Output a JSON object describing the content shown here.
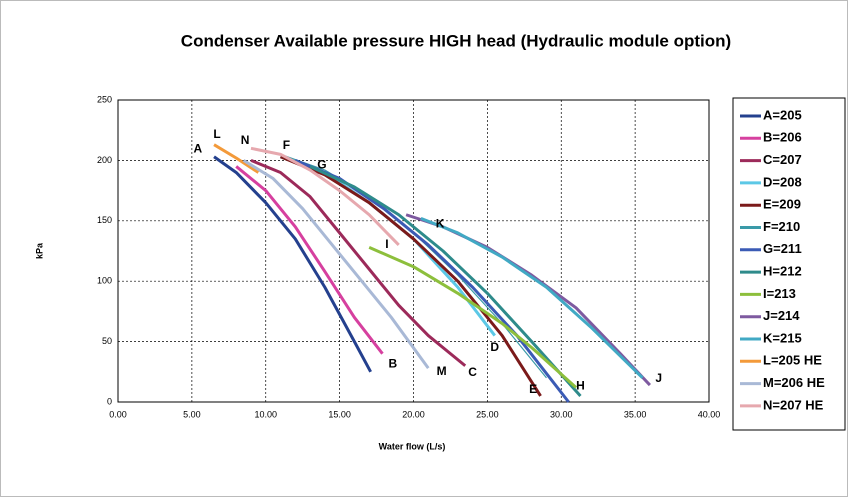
{
  "chart_data": {
    "type": "line",
    "title": "Condenser Available pressure HIGH head (Hydraulic module option)",
    "xlabel": "Water flow (L/s)",
    "ylabel": "kPa",
    "xlim": [
      0,
      40
    ],
    "ylim": [
      0,
      250
    ],
    "xticks": [
      {
        "value": 0,
        "label": "0.00"
      },
      {
        "value": 5,
        "label": "5.00"
      },
      {
        "value": 10,
        "label": "10.00"
      },
      {
        "value": 15,
        "label": "15.00"
      },
      {
        "value": 20,
        "label": "20.00"
      },
      {
        "value": 25,
        "label": "25.00"
      },
      {
        "value": 30,
        "label": "30.00"
      },
      {
        "value": 35,
        "label": "35.00"
      },
      {
        "value": 40,
        "label": "40.00"
      }
    ],
    "yticks": [
      0,
      50,
      100,
      150,
      200,
      250
    ],
    "grid": true,
    "series": [
      {
        "name": "A=205",
        "color": "#24408e",
        "x": [
          6.5,
          8,
          10,
          12,
          14,
          16,
          17.1
        ],
        "values": [
          203,
          190,
          165,
          135,
          95,
          50,
          25
        ]
      },
      {
        "name": "B=206",
        "color": "#d6409f",
        "x": [
          8,
          10,
          12,
          14,
          16,
          17.9
        ],
        "values": [
          195,
          175,
          145,
          108,
          70,
          40
        ]
      },
      {
        "name": "C=207",
        "color": "#9c2a5a",
        "x": [
          9,
          11,
          13,
          15,
          17,
          19,
          21,
          23.5
        ],
        "values": [
          200,
          190,
          170,
          140,
          110,
          80,
          55,
          30
        ]
      },
      {
        "name": "D=208",
        "color": "#5cc8e6",
        "x": [
          11,
          14,
          17,
          20,
          23,
          25.5
        ],
        "values": [
          203,
          190,
          165,
          135,
          95,
          55
        ]
      },
      {
        "name": "E=209",
        "color": "#7b1a1a",
        "x": [
          11,
          14,
          17,
          20,
          23,
          26,
          28.6
        ],
        "values": [
          203,
          188,
          165,
          135,
          100,
          55,
          5
        ]
      },
      {
        "name": "F=210",
        "color": "#3a9aa8",
        "x": [
          11,
          14,
          17,
          20,
          23,
          26,
          29
        ],
        "values": [
          205,
          192,
          170,
          140,
          105,
          65,
          20
        ]
      },
      {
        "name": "G=211",
        "color": "#3b5bb5",
        "x": [
          12,
          15,
          18,
          21,
          24,
          27,
          30.5
        ],
        "values": [
          200,
          185,
          160,
          130,
          95,
          55,
          0
        ]
      },
      {
        "name": "H=212",
        "color": "#2e8b8b",
        "x": [
          13,
          16,
          19,
          22,
          25,
          28,
          31.3
        ],
        "values": [
          195,
          178,
          155,
          125,
          90,
          50,
          5
        ]
      },
      {
        "name": "I=213",
        "color": "#8dbf3c",
        "x": [
          17,
          20,
          23,
          26,
          28,
          31
        ],
        "values": [
          128,
          112,
          90,
          65,
          45,
          12
        ]
      },
      {
        "name": "J=214",
        "color": "#7e5aa0",
        "x": [
          19.5,
          22,
          25,
          28,
          31,
          34,
          36
        ],
        "values": [
          155,
          145,
          128,
          105,
          78,
          40,
          14
        ]
      },
      {
        "name": "K=215",
        "color": "#41a9c4",
        "x": [
          20.5,
          23,
          26,
          29,
          32,
          35.5
        ],
        "values": [
          152,
          140,
          120,
          95,
          62,
          20
        ]
      },
      {
        "name": "L=205 HE",
        "color": "#f39a3a",
        "x": [
          6.5,
          8,
          9.5
        ],
        "values": [
          213,
          202,
          190
        ]
      },
      {
        "name": "M=206 HE",
        "color": "#a9b9d6",
        "x": [
          8.5,
          10.5,
          12.5,
          14.5,
          16.5,
          18.5,
          21
        ],
        "values": [
          200,
          185,
          160,
          130,
          100,
          70,
          28
        ]
      },
      {
        "name": "N=207 HE",
        "color": "#e6a8ae",
        "x": [
          9,
          11,
          13,
          15,
          17,
          19
        ],
        "values": [
          210,
          205,
          192,
          175,
          155,
          130
        ]
      }
    ],
    "annotations": [
      {
        "text": "A",
        "x": 5.4,
        "y": 209
      },
      {
        "text": "L",
        "x": 6.7,
        "y": 221
      },
      {
        "text": "N",
        "x": 8.6,
        "y": 216
      },
      {
        "text": "F",
        "x": 11.4,
        "y": 212
      },
      {
        "text": "G",
        "x": 13.8,
        "y": 196
      },
      {
        "text": "K",
        "x": 21.8,
        "y": 147
      },
      {
        "text": "I",
        "x": 18.2,
        "y": 130
      },
      {
        "text": "B",
        "x": 18.6,
        "y": 31
      },
      {
        "text": "M",
        "x": 21.9,
        "y": 25
      },
      {
        "text": "C",
        "x": 24,
        "y": 24
      },
      {
        "text": "D",
        "x": 25.5,
        "y": 45
      },
      {
        "text": "E",
        "x": 28.1,
        "y": 10
      },
      {
        "text": "H",
        "x": 31.3,
        "y": 13
      },
      {
        "text": "J",
        "x": 36.6,
        "y": 19
      }
    ]
  }
}
